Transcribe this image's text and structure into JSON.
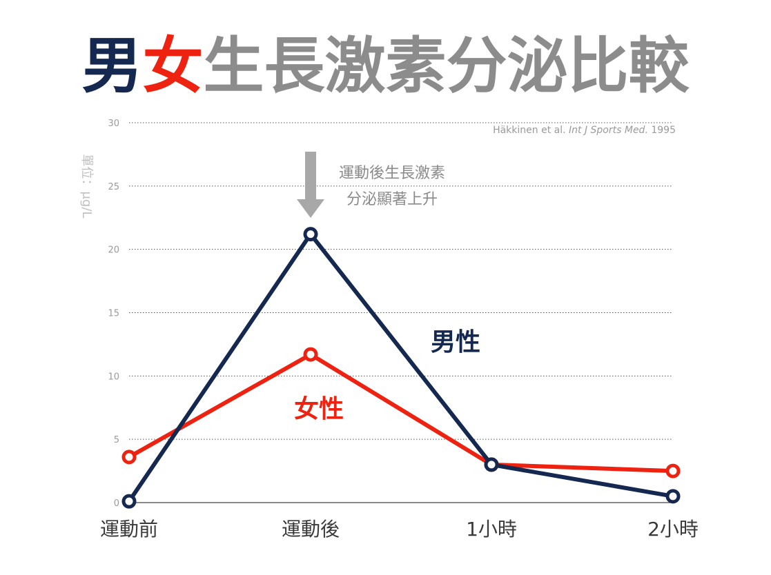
{
  "title": {
    "part1": "男",
    "part2": "女",
    "part3": "生長激素分泌比較",
    "colors": {
      "part1": "#142850",
      "part2": "#ee2211",
      "part3": "#8c8c8c"
    }
  },
  "citation": {
    "prefix": "Häkkinen et al. ",
    "journal": "Int J Sports Med.",
    "year": " 1995"
  },
  "annotation": {
    "line1": "運動後生長激素",
    "line2": "分泌顯著上升",
    "arrow_color": "#a8a8a8"
  },
  "chart_data": {
    "type": "line",
    "title": "男女生長激素分泌比較",
    "ylabel": "單位：μg/L",
    "xlabel": "",
    "categories": [
      "運動前",
      "運動後",
      "1小時",
      "2小時"
    ],
    "ylim": [
      0,
      30
    ],
    "yticks": [
      0,
      5,
      10,
      15,
      20,
      25,
      30
    ],
    "grid": true,
    "series": [
      {
        "name": "男性",
        "color": "#142850",
        "values": [
          0.1,
          21.2,
          3.0,
          0.5
        ]
      },
      {
        "name": "女性",
        "color": "#ee2211",
        "values": [
          3.6,
          11.7,
          3.0,
          2.5
        ]
      }
    ]
  }
}
